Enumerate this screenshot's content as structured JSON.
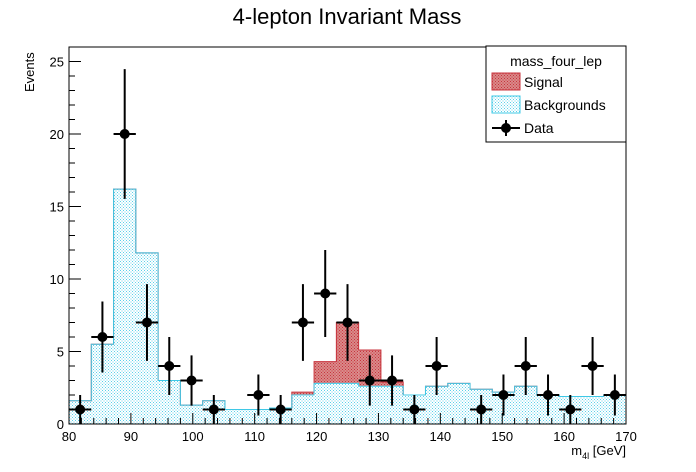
{
  "chart_data": {
    "type": "bar",
    "title": "4-lepton Invariant Mass",
    "xlabel_main": "m",
    "xlabel_sub": "4l",
    "xlabel_unit": " [GeV]",
    "ylabel": "Events",
    "xlim": [
      80,
      170
    ],
    "ylim": [
      0,
      26
    ],
    "x_ticks": [
      "80",
      "90",
      "100",
      "110",
      "120",
      "130",
      "140",
      "150",
      "160",
      "170"
    ],
    "y_ticks": [
      "0",
      "5",
      "10",
      "15",
      "20",
      "25"
    ],
    "bin_edges": [
      80,
      83.6,
      87.2,
      90.8,
      94.4,
      98,
      101.6,
      105.2,
      108.8,
      112.4,
      116,
      119.6,
      123.2,
      126.8,
      130.4,
      134,
      137.6,
      141.2,
      144.8,
      148.4,
      152,
      155.6,
      159.2,
      162.8,
      166.4,
      170
    ],
    "series": [
      {
        "name": "Backgrounds",
        "color": "#3fc8e6",
        "values": [
          1.6,
          5.5,
          16.2,
          11.8,
          3.0,
          1.3,
          1.6,
          1.0,
          1.0,
          1.1,
          2.0,
          2.8,
          2.8,
          2.6,
          2.6,
          2.0,
          2.6,
          2.8,
          2.4,
          2.2,
          2.6,
          2.0,
          1.9,
          1.9,
          2.0
        ]
      },
      {
        "name": "Signal",
        "color": "#c8333c",
        "values": [
          0,
          0,
          0,
          0,
          0,
          0,
          0,
          0,
          0,
          0,
          0.2,
          1.5,
          4.2,
          2.5,
          0.3,
          0,
          0,
          0,
          0,
          0,
          0,
          0,
          0,
          0,
          0
        ]
      }
    ],
    "data_points": {
      "name": "Data",
      "x": [
        81.8,
        85.4,
        89.0,
        92.6,
        96.2,
        99.8,
        103.4,
        110.6,
        114.2,
        117.8,
        121.4,
        125.0,
        128.6,
        132.2,
        135.8,
        139.4,
        146.6,
        150.2,
        153.8,
        157.4,
        161.0,
        164.6,
        168.2
      ],
      "y": [
        1,
        6,
        20,
        7,
        4,
        3,
        1,
        2,
        1,
        7,
        9,
        7,
        3,
        3,
        1,
        4,
        1,
        2,
        4,
        2,
        1,
        4,
        2
      ]
    },
    "legend": {
      "title": "mass_four_lep",
      "entries": [
        "Signal",
        "Backgrounds",
        "Data"
      ],
      "placement": "top-right"
    }
  }
}
